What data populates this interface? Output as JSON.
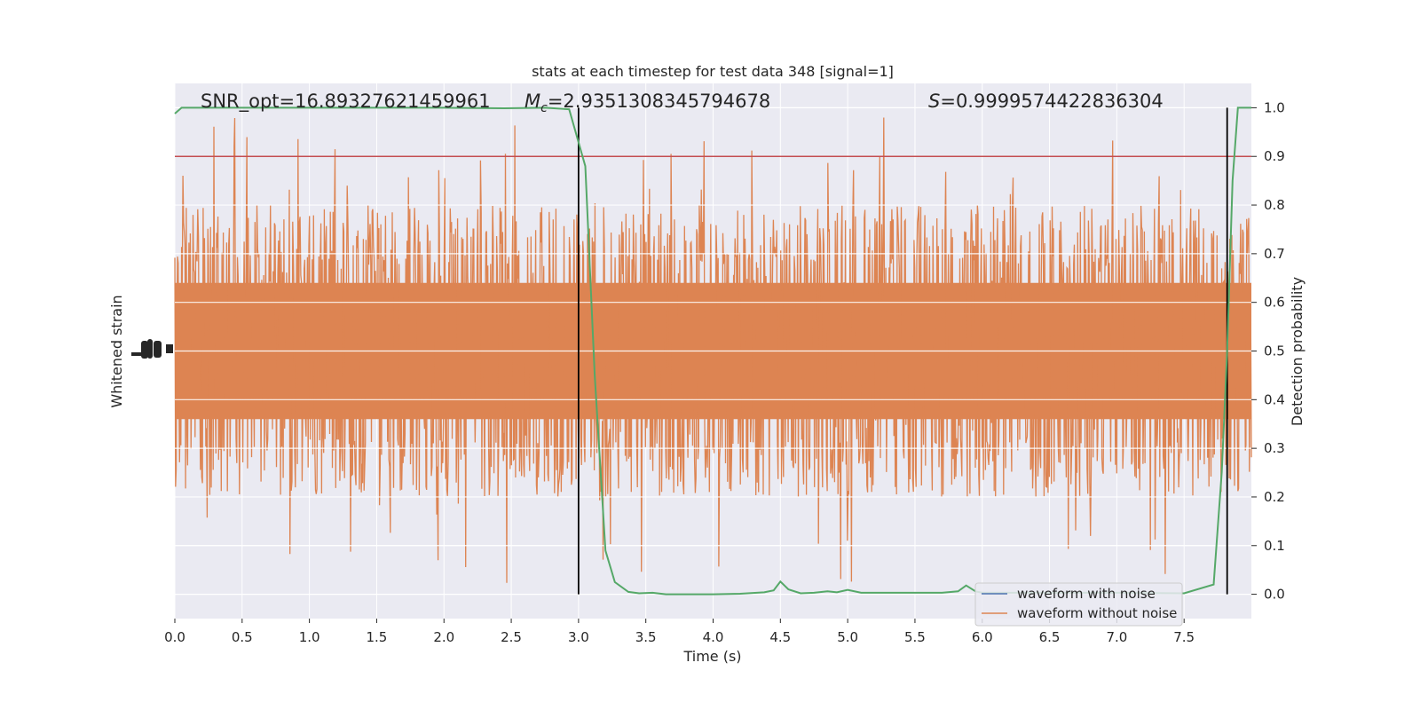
{
  "chart_data": {
    "type": "line",
    "title": "stats at each timestep for test data 348 [signal=1]",
    "xlabel": "Time (s)",
    "ylabel_left": "Whitened strain",
    "ylabel_right": "Detection probability",
    "xlim": [
      0.0,
      8.0
    ],
    "ylim_right": [
      -0.05,
      1.05
    ],
    "x_ticks": [
      "0.0",
      "0.5",
      "1.0",
      "1.5",
      "2.0",
      "2.5",
      "3.0",
      "3.5",
      "4.0",
      "4.5",
      "5.0",
      "5.5",
      "6.0",
      "6.5",
      "7.0",
      "7.5"
    ],
    "y_ticks_right": [
      "0.0",
      "0.1",
      "0.2",
      "0.3",
      "0.4",
      "0.5",
      "0.6",
      "0.7",
      "0.8",
      "0.9",
      "1.0"
    ],
    "annotations": {
      "snr": "SNR_opt=16.89327621459961",
      "mc_symbol": "M",
      "mc_subscript": "c",
      "mc_value": "=2.9351308345794678",
      "s_symbol": "S",
      "s_value": "=0.9999574422836304"
    },
    "threshold": 0.9,
    "vlines": [
      3.0,
      7.82
    ],
    "legend": {
      "placement": "lower-right",
      "entries": [
        {
          "label": "waveform with noise",
          "color": "#4c72b0"
        },
        {
          "label": "waveform without noise",
          "color": "#dd8452"
        }
      ]
    },
    "strain_noise": {
      "color": "#dd8452",
      "center": 0.5,
      "typical_extent": [
        0.28,
        0.79
      ],
      "spike_range": [
        0.0,
        1.0
      ]
    },
    "probability": {
      "color": "#55a868",
      "x": [
        0.0,
        0.05,
        0.5,
        1.0,
        1.5,
        2.0,
        2.45,
        2.75,
        2.93,
        3.05,
        3.12,
        3.2,
        3.27,
        3.37,
        3.45,
        3.55,
        3.65,
        4.0,
        4.2,
        4.38,
        4.45,
        4.5,
        4.56,
        4.65,
        4.75,
        4.85,
        4.92,
        5.0,
        5.1,
        5.25,
        5.5,
        5.7,
        5.82,
        5.88,
        5.95,
        6.0,
        6.2,
        6.5,
        7.0,
        7.5,
        7.72,
        7.78,
        7.82,
        7.86,
        7.9,
        8.0
      ],
      "y": [
        0.988,
        1.0,
        1.0,
        1.0,
        1.0,
        1.0,
        0.999,
        1.0,
        0.997,
        0.88,
        0.45,
        0.09,
        0.025,
        0.005,
        0.002,
        0.003,
        0.0,
        0.0,
        0.001,
        0.004,
        0.008,
        0.026,
        0.01,
        0.002,
        0.003,
        0.006,
        0.004,
        0.009,
        0.003,
        0.003,
        0.003,
        0.003,
        0.006,
        0.018,
        0.006,
        0.003,
        0.003,
        0.003,
        0.003,
        0.002,
        0.02,
        0.25,
        0.5,
        0.85,
        1.0,
        1.0
      ]
    },
    "colors": {
      "background": "#eaeaf2",
      "grid": "#ffffff",
      "threshold": "#c44e52",
      "vline": "#000000"
    }
  }
}
